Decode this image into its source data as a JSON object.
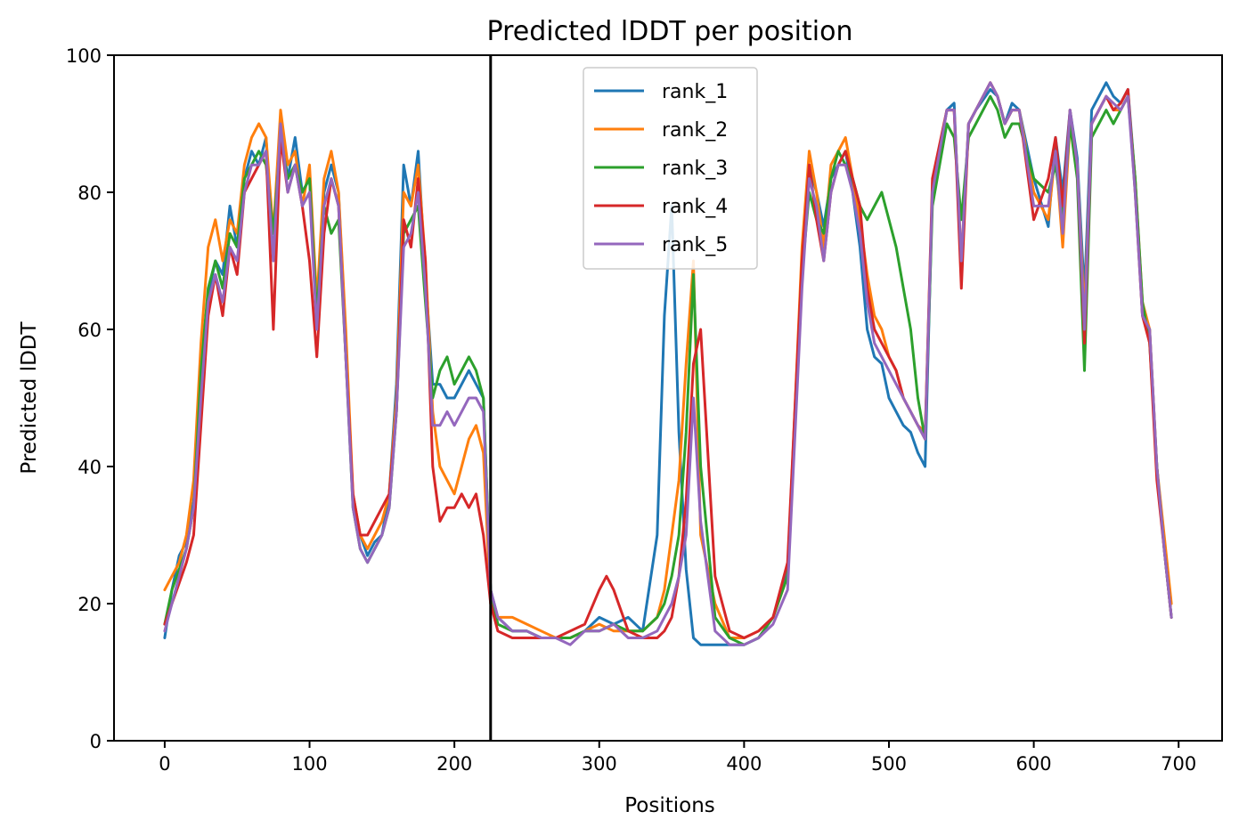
{
  "chart_data": {
    "type": "line",
    "title": "Predicted lDDT per position",
    "xlabel": "Positions",
    "ylabel": "Predicted lDDT",
    "xlim": [
      -35,
      730
    ],
    "ylim": [
      0,
      100
    ],
    "xticks": [
      0,
      100,
      200,
      300,
      400,
      500,
      600,
      700
    ],
    "yticks": [
      0,
      20,
      40,
      60,
      80,
      100
    ],
    "grid": false,
    "legend_position": "upper center",
    "vline_x": 225,
    "vline_color": "#000000",
    "series": [
      {
        "name": "rank_1",
        "color": "#1f77b4",
        "x": [
          0,
          5,
          10,
          15,
          20,
          25,
          30,
          35,
          40,
          45,
          50,
          55,
          60,
          65,
          70,
          75,
          80,
          85,
          90,
          95,
          100,
          105,
          110,
          115,
          120,
          125,
          130,
          135,
          140,
          145,
          150,
          155,
          160,
          165,
          170,
          175,
          180,
          185,
          190,
          195,
          200,
          205,
          210,
          215,
          220,
          225,
          230,
          240,
          250,
          260,
          270,
          280,
          290,
          300,
          310,
          320,
          330,
          340,
          345,
          350,
          355,
          360,
          365,
          370,
          380,
          390,
          400,
          410,
          420,
          430,
          440,
          445,
          450,
          455,
          460,
          465,
          470,
          475,
          480,
          485,
          490,
          495,
          500,
          505,
          510,
          515,
          520,
          525,
          530,
          540,
          545,
          550,
          555,
          560,
          570,
          575,
          580,
          585,
          590,
          600,
          610,
          615,
          620,
          625,
          630,
          635,
          640,
          650,
          655,
          660,
          665,
          670,
          675,
          680,
          685,
          690,
          695
        ],
        "values": [
          15,
          22,
          27,
          29,
          35,
          55,
          65,
          70,
          68,
          78,
          72,
          82,
          86,
          84,
          88,
          70,
          90,
          82,
          88,
          80,
          82,
          62,
          80,
          84,
          80,
          58,
          35,
          30,
          27,
          29,
          30,
          36,
          52,
          84,
          78,
          86,
          68,
          52,
          52,
          50,
          50,
          52,
          54,
          52,
          50,
          22,
          18,
          16,
          16,
          15,
          15,
          15,
          16,
          18,
          17,
          18,
          16,
          30,
          62,
          78,
          45,
          25,
          15,
          14,
          14,
          14,
          14,
          15,
          18,
          25,
          70,
          84,
          80,
          75,
          82,
          84,
          86,
          80,
          72,
          60,
          56,
          55,
          50,
          48,
          46,
          45,
          42,
          40,
          80,
          92,
          93,
          68,
          90,
          92,
          95,
          94,
          90,
          93,
          92,
          82,
          75,
          88,
          80,
          92,
          85,
          65,
          92,
          96,
          94,
          93,
          95,
          82,
          62,
          60,
          40,
          28,
          18
        ]
      },
      {
        "name": "rank_2",
        "color": "#ff7f0e",
        "x": [
          0,
          5,
          10,
          15,
          20,
          25,
          30,
          35,
          40,
          45,
          50,
          55,
          60,
          65,
          70,
          75,
          80,
          85,
          90,
          95,
          100,
          105,
          110,
          115,
          120,
          125,
          130,
          135,
          140,
          145,
          150,
          155,
          160,
          165,
          170,
          175,
          180,
          185,
          190,
          195,
          200,
          205,
          210,
          215,
          220,
          225,
          230,
          240,
          250,
          260,
          270,
          280,
          290,
          300,
          310,
          320,
          330,
          340,
          345,
          350,
          355,
          360,
          365,
          370,
          380,
          390,
          400,
          410,
          420,
          430,
          440,
          445,
          450,
          455,
          460,
          465,
          470,
          475,
          480,
          485,
          490,
          495,
          500,
          505,
          510,
          515,
          520,
          525,
          530,
          540,
          545,
          550,
          555,
          560,
          570,
          575,
          580,
          585,
          590,
          600,
          610,
          615,
          620,
          625,
          630,
          635,
          640,
          650,
          655,
          660,
          665,
          670,
          675,
          680,
          685,
          690,
          695
        ],
        "values": [
          22,
          24,
          26,
          30,
          38,
          58,
          72,
          76,
          70,
          76,
          74,
          84,
          88,
          90,
          88,
          74,
          92,
          84,
          86,
          78,
          84,
          64,
          82,
          86,
          80,
          60,
          36,
          30,
          28,
          30,
          32,
          36,
          50,
          80,
          78,
          84,
          70,
          48,
          40,
          38,
          36,
          40,
          44,
          46,
          42,
          20,
          18,
          18,
          17,
          16,
          15,
          15,
          16,
          17,
          16,
          16,
          16,
          18,
          22,
          30,
          38,
          55,
          70,
          30,
          20,
          15,
          15,
          16,
          18,
          24,
          72,
          86,
          80,
          72,
          84,
          86,
          88,
          82,
          76,
          68,
          62,
          60,
          56,
          54,
          50,
          48,
          46,
          45,
          80,
          92,
          92,
          70,
          90,
          92,
          96,
          94,
          90,
          92,
          92,
          80,
          76,
          86,
          72,
          90,
          84,
          62,
          90,
          94,
          92,
          92,
          94,
          82,
          64,
          60,
          40,
          30,
          20
        ]
      },
      {
        "name": "rank_3",
        "color": "#2ca02c",
        "x": [
          0,
          5,
          10,
          15,
          20,
          25,
          30,
          35,
          40,
          45,
          50,
          55,
          60,
          65,
          70,
          75,
          80,
          85,
          90,
          95,
          100,
          105,
          110,
          115,
          120,
          125,
          130,
          135,
          140,
          145,
          150,
          155,
          160,
          165,
          170,
          175,
          180,
          185,
          190,
          195,
          200,
          205,
          210,
          215,
          220,
          225,
          230,
          240,
          250,
          260,
          270,
          280,
          290,
          300,
          310,
          320,
          330,
          340,
          345,
          350,
          355,
          360,
          365,
          370,
          380,
          390,
          400,
          410,
          420,
          430,
          440,
          445,
          450,
          455,
          460,
          465,
          470,
          475,
          480,
          485,
          490,
          495,
          500,
          505,
          510,
          515,
          520,
          525,
          530,
          540,
          545,
          550,
          555,
          560,
          570,
          575,
          580,
          585,
          590,
          600,
          610,
          615,
          620,
          625,
          630,
          635,
          640,
          650,
          655,
          660,
          665,
          670,
          675,
          680,
          685,
          690,
          695
        ],
        "values": [
          17,
          22,
          25,
          28,
          34,
          54,
          66,
          70,
          66,
          74,
          72,
          82,
          84,
          86,
          84,
          74,
          88,
          82,
          84,
          80,
          82,
          62,
          78,
          74,
          76,
          56,
          34,
          28,
          26,
          28,
          30,
          34,
          48,
          74,
          76,
          78,
          64,
          50,
          54,
          56,
          52,
          54,
          56,
          54,
          50,
          22,
          17,
          16,
          16,
          15,
          15,
          15,
          16,
          16,
          17,
          16,
          16,
          18,
          20,
          24,
          30,
          45,
          68,
          40,
          18,
          15,
          14,
          15,
          18,
          24,
          68,
          80,
          76,
          74,
          82,
          86,
          84,
          82,
          78,
          76,
          78,
          80,
          76,
          72,
          66,
          60,
          50,
          44,
          78,
          90,
          88,
          76,
          88,
          90,
          94,
          92,
          88,
          90,
          90,
          82,
          80,
          84,
          76,
          90,
          82,
          54,
          88,
          92,
          90,
          92,
          94,
          82,
          64,
          58,
          40,
          28,
          18
        ]
      },
      {
        "name": "rank_4",
        "color": "#d62728",
        "x": [
          0,
          5,
          10,
          15,
          20,
          25,
          30,
          35,
          40,
          45,
          50,
          55,
          60,
          65,
          70,
          75,
          80,
          85,
          90,
          95,
          100,
          105,
          110,
          115,
          120,
          125,
          130,
          135,
          140,
          145,
          150,
          155,
          160,
          165,
          170,
          175,
          180,
          185,
          190,
          195,
          200,
          205,
          210,
          215,
          220,
          225,
          230,
          240,
          250,
          260,
          270,
          280,
          290,
          300,
          305,
          310,
          320,
          330,
          340,
          345,
          350,
          355,
          360,
          365,
          370,
          380,
          390,
          400,
          410,
          420,
          430,
          440,
          445,
          450,
          455,
          460,
          465,
          470,
          475,
          480,
          485,
          490,
          495,
          500,
          505,
          510,
          515,
          520,
          525,
          530,
          540,
          545,
          550,
          555,
          560,
          570,
          575,
          580,
          585,
          590,
          600,
          610,
          615,
          620,
          625,
          630,
          635,
          640,
          650,
          655,
          660,
          665,
          670,
          675,
          680,
          685,
          690,
          695
        ],
        "values": [
          17,
          20,
          23,
          26,
          30,
          46,
          62,
          68,
          62,
          72,
          68,
          80,
          82,
          84,
          86,
          60,
          88,
          80,
          84,
          78,
          70,
          56,
          74,
          82,
          78,
          56,
          36,
          30,
          30,
          32,
          34,
          36,
          48,
          76,
          72,
          82,
          70,
          40,
          32,
          34,
          34,
          36,
          34,
          36,
          30,
          20,
          16,
          15,
          15,
          15,
          15,
          16,
          17,
          22,
          24,
          22,
          16,
          15,
          15,
          16,
          18,
          24,
          35,
          55,
          60,
          24,
          16,
          15,
          16,
          18,
          26,
          70,
          84,
          76,
          70,
          80,
          84,
          86,
          82,
          78,
          66,
          60,
          58,
          56,
          54,
          50,
          48,
          46,
          44,
          82,
          92,
          92,
          66,
          90,
          92,
          96,
          94,
          90,
          92,
          92,
          76,
          82,
          88,
          78,
          92,
          84,
          58,
          90,
          94,
          92,
          93,
          95,
          80,
          62,
          58,
          38,
          28,
          18
        ]
      },
      {
        "name": "rank_5",
        "color": "#9467bd",
        "x": [
          0,
          5,
          10,
          15,
          20,
          25,
          30,
          35,
          40,
          45,
          50,
          55,
          60,
          65,
          70,
          75,
          80,
          85,
          90,
          95,
          100,
          105,
          110,
          115,
          120,
          125,
          130,
          135,
          140,
          145,
          150,
          155,
          160,
          165,
          170,
          175,
          180,
          185,
          190,
          195,
          200,
          205,
          210,
          215,
          220,
          225,
          230,
          240,
          250,
          260,
          270,
          280,
          290,
          300,
          310,
          320,
          330,
          340,
          345,
          350,
          355,
          360,
          365,
          370,
          380,
          390,
          400,
          410,
          420,
          430,
          440,
          445,
          450,
          455,
          460,
          465,
          470,
          475,
          480,
          485,
          490,
          495,
          500,
          505,
          510,
          515,
          520,
          525,
          530,
          540,
          545,
          550,
          555,
          560,
          570,
          575,
          580,
          585,
          590,
          600,
          610,
          615,
          620,
          625,
          630,
          635,
          640,
          650,
          655,
          660,
          665,
          670,
          675,
          680,
          685,
          690,
          695
        ],
        "values": [
          16,
          20,
          24,
          28,
          34,
          50,
          64,
          68,
          64,
          72,
          70,
          80,
          84,
          84,
          86,
          70,
          90,
          80,
          84,
          78,
          80,
          60,
          78,
          82,
          78,
          56,
          34,
          28,
          26,
          28,
          30,
          34,
          48,
          72,
          74,
          80,
          66,
          46,
          46,
          48,
          46,
          48,
          50,
          50,
          48,
          22,
          18,
          16,
          16,
          15,
          15,
          14,
          16,
          16,
          17,
          15,
          15,
          16,
          18,
          20,
          24,
          30,
          50,
          32,
          16,
          14,
          14,
          15,
          17,
          22,
          66,
          82,
          78,
          70,
          80,
          84,
          84,
          80,
          74,
          64,
          58,
          56,
          54,
          52,
          50,
          48,
          46,
          44,
          80,
          92,
          92,
          70,
          90,
          92,
          96,
          94,
          90,
          92,
          92,
          78,
          78,
          86,
          74,
          92,
          84,
          60,
          90,
          94,
          93,
          92,
          94,
          80,
          62,
          60,
          40,
          28,
          18
        ]
      }
    ]
  }
}
